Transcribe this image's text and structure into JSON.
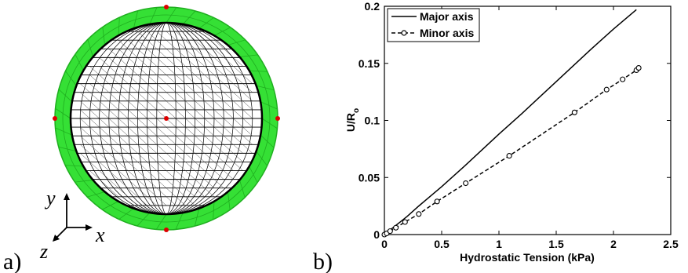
{
  "figure": {
    "panel_a_label": "a)",
    "panel_b_label": "b)",
    "panel_a": {
      "outer_mesh_color": "#33dd33",
      "inner_mesh_color": "#000000",
      "node_marker_color": "#dd0000",
      "axes_labels": {
        "x": "x",
        "y": "y",
        "z": "z"
      }
    }
  },
  "chart_data": {
    "type": "line",
    "title": "",
    "xlabel": "Hydrostatic Tension (kPa)",
    "ylabel_main": "U/R",
    "ylabel_sub": "o",
    "xlim": [
      0,
      2.5
    ],
    "ylim": [
      0,
      0.2
    ],
    "xticks": [
      0,
      0.5,
      1,
      1.5,
      2,
      2.5
    ],
    "xtick_labels": [
      "0",
      "0.5",
      "1",
      "1.5",
      "2",
      "2.5"
    ],
    "yticks": [
      0,
      0.05,
      0.1,
      0.15,
      0.2
    ],
    "ytick_labels": [
      "0",
      "0.05",
      "0.1",
      "0.15",
      "0.2"
    ],
    "grid": false,
    "legend_position": "top-left",
    "series": [
      {
        "name": "Major axis",
        "style": "solid",
        "marker": "none",
        "x": [
          0,
          0.05,
          0.1,
          0.2,
          0.3,
          0.5,
          0.7,
          1.0,
          1.2,
          1.5,
          1.8,
          2.0,
          2.2
        ],
        "y": [
          0,
          0.004,
          0.008,
          0.016,
          0.025,
          0.042,
          0.06,
          0.088,
          0.106,
          0.134,
          0.162,
          0.18,
          0.197
        ]
      },
      {
        "name": "Minor axis",
        "style": "dashed",
        "marker": "circle",
        "x": [
          0,
          0.02,
          0.05,
          0.1,
          0.18,
          0.3,
          0.46,
          0.71,
          1.09,
          1.66,
          1.94,
          2.08,
          2.2,
          2.22
        ],
        "y": [
          0,
          0.001,
          0.003,
          0.006,
          0.011,
          0.018,
          0.029,
          0.045,
          0.069,
          0.107,
          0.127,
          0.136,
          0.144,
          0.146
        ]
      }
    ]
  }
}
